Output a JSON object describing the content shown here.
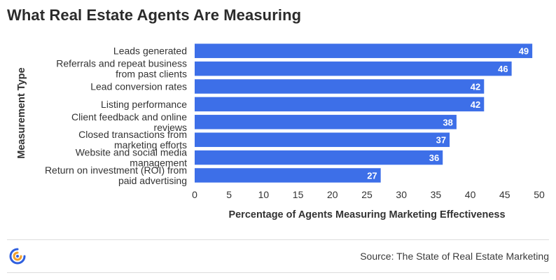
{
  "title": "What Real Estate Agents Are Measuring",
  "source": "Source: The State of Real Estate Marketing",
  "colors": {
    "bar": "#3d6fe8",
    "text": "#333333",
    "value_label": "#ffffff"
  },
  "logo": {
    "icon": "brand-logo-icon",
    "colors": [
      "#f2a02b",
      "#2f5fde"
    ]
  },
  "chart_data": {
    "type": "bar",
    "orientation": "horizontal",
    "categories": [
      [
        "Leads generated"
      ],
      [
        "Referrals and repeat business",
        "from past clients"
      ],
      [
        "Lead conversion rates"
      ],
      [
        "Listing performance"
      ],
      [
        "Client feedback and online",
        "reviews"
      ],
      [
        "Closed transactions from",
        "marketing efforts"
      ],
      [
        "Website and social media",
        "management"
      ],
      [
        "Return on investment (ROI) from",
        "paid advertising"
      ]
    ],
    "values": [
      49,
      46,
      42,
      42,
      38,
      37,
      36,
      27
    ],
    "xlabel": "Percentage of Agents Measuring Marketing Effectiveness",
    "ylabel": "Measurement Type",
    "xlim": [
      0,
      50
    ],
    "xticks": [
      0,
      5,
      10,
      15,
      20,
      25,
      30,
      35,
      40,
      45,
      50
    ],
    "grid": false,
    "legend": "none",
    "data_labels": true
  }
}
